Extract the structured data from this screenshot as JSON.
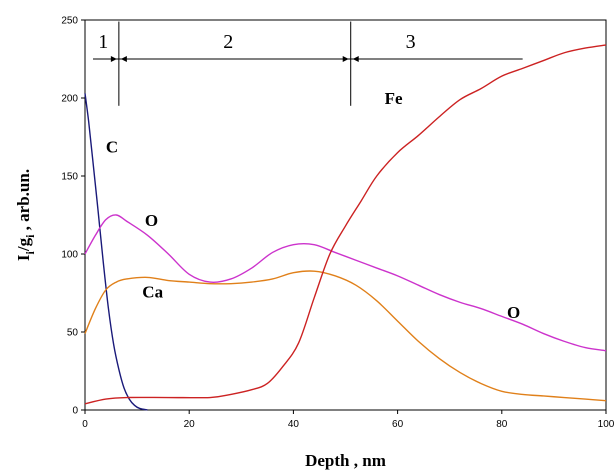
{
  "chart_data": {
    "type": "line",
    "xlabel": "Depth , nm",
    "ylabel": "I_i/g_i , arb.un.",
    "ylabel_parts": {
      "main": "I",
      "sub1": "i",
      "sep": "/g",
      "sub2": "i",
      "rest": " ,  arb.un."
    },
    "xlim": [
      0,
      100
    ],
    "ylim": [
      0,
      250
    ],
    "xticks": [
      "0",
      "20",
      "40",
      "60",
      "80",
      "100"
    ],
    "yticks": [
      "0",
      "50",
      "100",
      "150",
      "200",
      "250"
    ],
    "grid": false,
    "series": [
      {
        "name": "C",
        "color": "#1a1a7a",
        "points": [
          [
            0,
            203
          ],
          [
            0.7,
            185
          ],
          [
            1.5,
            160
          ],
          [
            2.5,
            128
          ],
          [
            3.5,
            95
          ],
          [
            4.5,
            65
          ],
          [
            5.5,
            42
          ],
          [
            6.5,
            26
          ],
          [
            7.5,
            14
          ],
          [
            8.5,
            7
          ],
          [
            9.5,
            3
          ],
          [
            10.5,
            1
          ],
          [
            12,
            0
          ]
        ]
      },
      {
        "name": "O",
        "color": "#cc33cc",
        "points": [
          [
            0,
            100
          ],
          [
            2,
            112
          ],
          [
            4,
            122
          ],
          [
            6,
            125
          ],
          [
            8,
            121
          ],
          [
            12,
            112
          ],
          [
            16,
            100
          ],
          [
            20,
            87
          ],
          [
            24,
            82
          ],
          [
            28,
            84
          ],
          [
            32,
            91
          ],
          [
            36,
            101
          ],
          [
            40,
            106
          ],
          [
            44,
            106
          ],
          [
            48,
            101
          ],
          [
            52,
            96
          ],
          [
            56,
            91
          ],
          [
            60,
            86
          ],
          [
            64,
            80
          ],
          [
            68,
            74
          ],
          [
            72,
            69
          ],
          [
            76,
            65
          ],
          [
            80,
            60
          ],
          [
            84,
            55
          ],
          [
            88,
            49
          ],
          [
            92,
            44
          ],
          [
            96,
            40
          ],
          [
            100,
            38
          ]
        ]
      },
      {
        "name": "Ca",
        "color": "#e0801a",
        "points": [
          [
            0,
            49
          ],
          [
            2,
            65
          ],
          [
            4,
            77
          ],
          [
            6,
            82
          ],
          [
            8,
            84
          ],
          [
            12,
            85
          ],
          [
            16,
            83
          ],
          [
            20,
            82
          ],
          [
            24,
            81
          ],
          [
            28,
            81
          ],
          [
            32,
            82
          ],
          [
            36,
            84
          ],
          [
            40,
            88
          ],
          [
            44,
            89
          ],
          [
            48,
            86
          ],
          [
            52,
            80
          ],
          [
            56,
            70
          ],
          [
            60,
            57
          ],
          [
            64,
            44
          ],
          [
            68,
            33
          ],
          [
            72,
            24
          ],
          [
            76,
            17
          ],
          [
            80,
            12
          ],
          [
            84,
            10
          ],
          [
            88,
            9
          ],
          [
            92,
            8
          ],
          [
            96,
            7
          ],
          [
            100,
            6
          ]
        ]
      },
      {
        "name": "Fe",
        "color": "#cc2222",
        "points": [
          [
            0,
            4
          ],
          [
            4,
            7
          ],
          [
            8,
            8
          ],
          [
            16,
            8
          ],
          [
            24,
            8
          ],
          [
            28,
            10
          ],
          [
            32,
            13
          ],
          [
            35,
            17
          ],
          [
            38,
            28
          ],
          [
            41,
            43
          ],
          [
            44,
            72
          ],
          [
            47,
            100
          ],
          [
            50,
            118
          ],
          [
            53,
            134
          ],
          [
            56,
            150
          ],
          [
            60,
            165
          ],
          [
            64,
            176
          ],
          [
            68,
            188
          ],
          [
            72,
            199
          ],
          [
            76,
            206
          ],
          [
            80,
            214
          ],
          [
            84,
            219
          ],
          [
            88,
            224
          ],
          [
            92,
            229
          ],
          [
            96,
            232
          ],
          [
            100,
            234
          ]
        ]
      }
    ],
    "annotations": {
      "series_labels": [
        {
          "text": "C",
          "x": 4,
          "y": 165,
          "color": "#000"
        },
        {
          "text": "O",
          "x": 11.5,
          "y": 118,
          "color": "#000"
        },
        {
          "text": "Ca",
          "x": 11,
          "y": 72,
          "color": "#000"
        },
        {
          "text": "O",
          "x": 81,
          "y": 59,
          "color": "#000"
        },
        {
          "text": "Fe",
          "x": 57.5,
          "y": 196,
          "color": "#000"
        }
      ],
      "regions": [
        {
          "label": "1",
          "from": 0,
          "to": 6.5,
          "label_x": 3.5
        },
        {
          "label": "2",
          "from": 6.5,
          "to": 51,
          "label_x": 27.5
        },
        {
          "label": "3",
          "from": 51,
          "to": 84,
          "label_x": 62.5
        }
      ],
      "region_line_y": 225,
      "divider_bottom_y": 195,
      "region_label_y": 232
    }
  }
}
